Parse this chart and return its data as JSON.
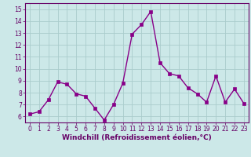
{
  "x": [
    0,
    1,
    2,
    3,
    4,
    5,
    6,
    7,
    8,
    9,
    10,
    11,
    12,
    13,
    14,
    15,
    16,
    17,
    18,
    19,
    20,
    21,
    22,
    23
  ],
  "y": [
    6.2,
    6.4,
    7.4,
    8.9,
    8.7,
    7.9,
    7.7,
    6.7,
    5.7,
    7.0,
    8.8,
    12.9,
    13.7,
    14.8,
    10.5,
    9.6,
    9.4,
    8.4,
    7.9,
    7.2,
    9.4,
    7.2,
    8.3,
    7.1
  ],
  "line_color": "#880088",
  "marker": "s",
  "marker_size": 2.2,
  "line_width": 1.0,
  "bg_color": "#cce8e8",
  "grid_color": "#aacccc",
  "xlabel": "Windchill (Refroidissement éolien,°C)",
  "xlim": [
    -0.5,
    23.5
  ],
  "ylim": [
    5.5,
    15.5
  ],
  "yticks": [
    6,
    7,
    8,
    9,
    10,
    11,
    12,
    13,
    14,
    15
  ],
  "xticks": [
    0,
    1,
    2,
    3,
    4,
    5,
    6,
    7,
    8,
    9,
    10,
    11,
    12,
    13,
    14,
    15,
    16,
    17,
    18,
    19,
    20,
    21,
    22,
    23
  ],
  "tick_fontsize": 5.5,
  "xlabel_fontsize": 6.5,
  "axis_color": "#660066",
  "spine_color": "#660066"
}
